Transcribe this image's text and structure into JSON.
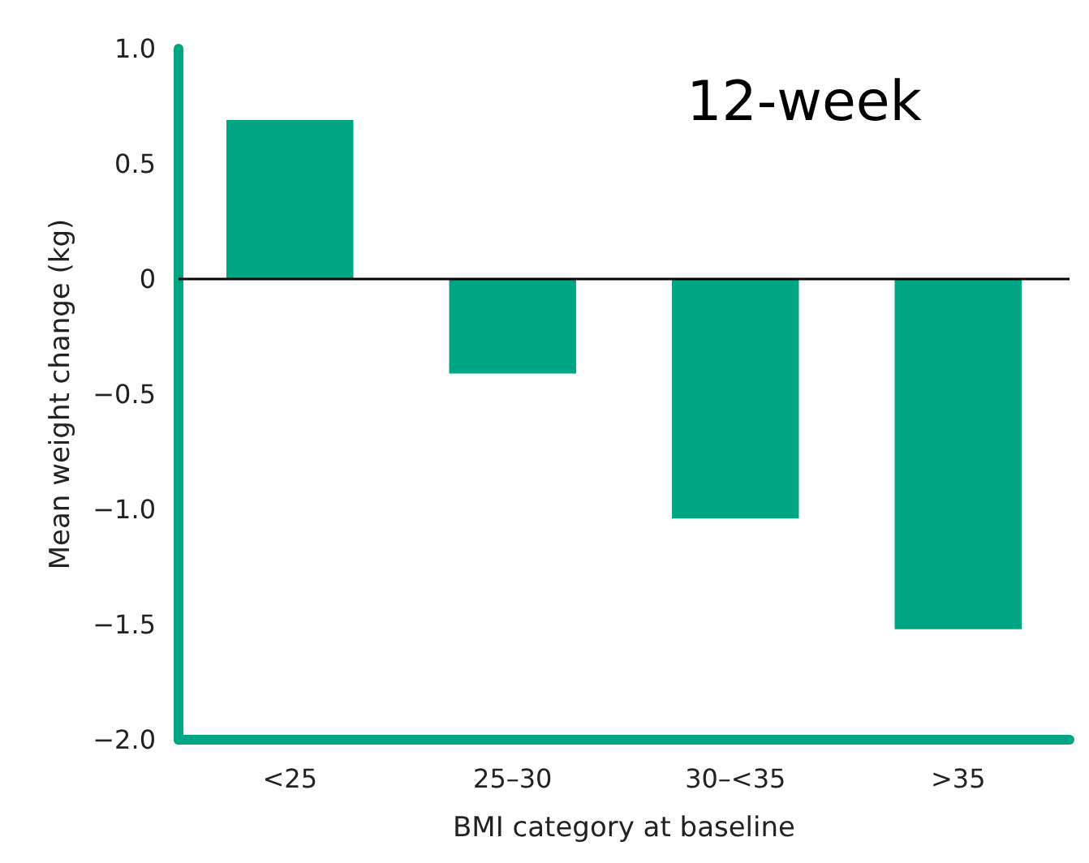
{
  "chart_data": {
    "type": "bar",
    "xlabel": "BMI category at baseline",
    "ylabel": "Mean weight change (kg)",
    "categories": [
      "<25",
      "25–30",
      "30–<35",
      ">35"
    ],
    "values": [
      0.69,
      -0.41,
      -1.04,
      -1.52
    ],
    "color": "#00a584",
    "ylim": [
      -2,
      1
    ],
    "yticks": [
      {
        "value": -2,
        "label": "−2.0"
      },
      {
        "value": -1.5,
        "label": "−1.5"
      },
      {
        "value": -1,
        "label": "−1.0"
      },
      {
        "value": -0.5,
        "label": "−0.5"
      },
      0,
      {
        "value": 0.5,
        "label": "0.5"
      },
      {
        "value": 1,
        "label": "1.0"
      }
    ],
    "ref_lines": [
      {
        "axis": "y",
        "value": 0,
        "color": "#000000"
      }
    ],
    "annotations": [
      "12-week"
    ],
    "grid": false
  }
}
